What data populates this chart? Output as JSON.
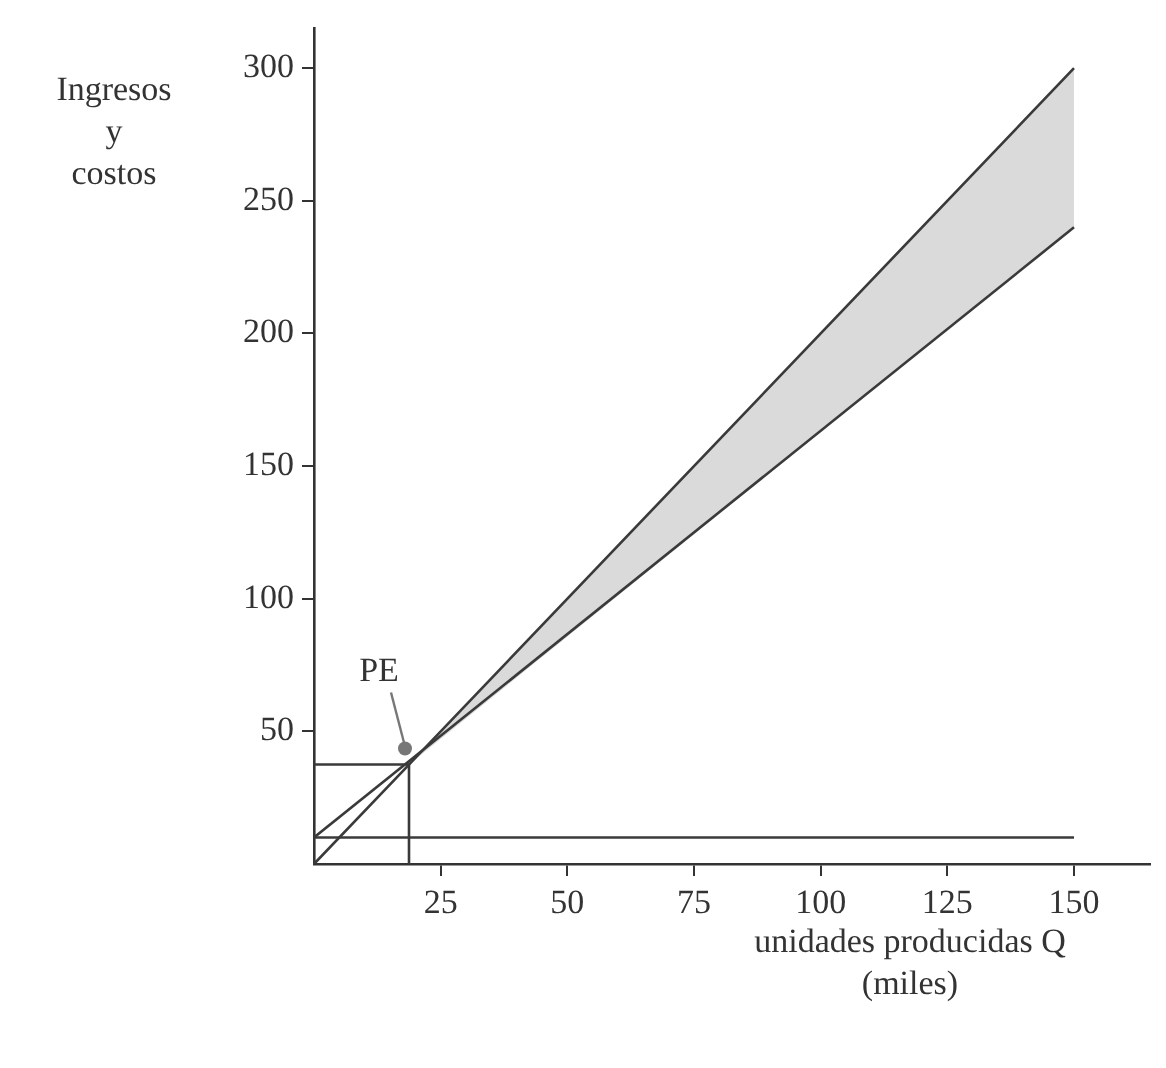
{
  "chart_data": {
    "type": "line",
    "ylabel": "Ingresos\ny\ncostos",
    "xlabel": "unidades producidas Q\n(miles)",
    "xlim": [
      0,
      165
    ],
    "ylim": [
      0,
      315
    ],
    "xticks": [
      25,
      50,
      75,
      100,
      125,
      150
    ],
    "yticks": [
      50,
      100,
      150,
      200,
      250,
      300
    ],
    "grid": false,
    "legend": false,
    "marker": "none",
    "line_style": "solid",
    "series": [
      {
        "x": [
          0,
          18.75,
          150
        ],
        "values": [
          0,
          37.5,
          300
        ],
        "lower": [
          null,
          37.5,
          240
        ],
        "upper": [
          null,
          37.5,
          300
        ],
        "color": "#3a3a3a"
      },
      {
        "x": [
          0,
          150
        ],
        "values": [
          10,
          240
        ],
        "color": "#3a3a3a"
      },
      {
        "x": [
          0,
          150
        ],
        "values": [
          10,
          10
        ],
        "color": "#3a3a3a"
      },
      {
        "x": [
          0,
          18.75,
          18.75
        ],
        "values": [
          37.5,
          37.5,
          0
        ],
        "color": "#3a3a3a"
      }
    ],
    "annotations": [
      {
        "text": "PE",
        "x": 18.75,
        "y": 37.5
      }
    ]
  }
}
